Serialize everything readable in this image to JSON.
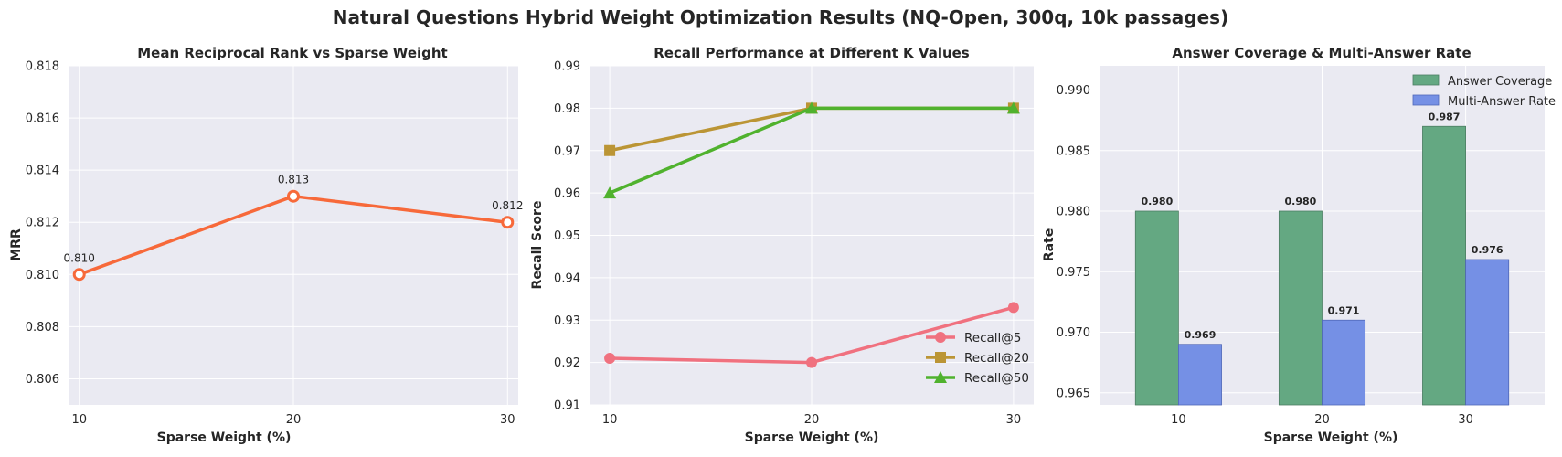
{
  "figure_title": "Natural Questions Hybrid Weight Optimization Results (NQ-Open, 300q, 10k passages)",
  "colors": {
    "plot_bg": "#EAEAF2",
    "grid": "#FFFFFF",
    "mrr_line": "#F7693A",
    "recall5": "#F0717F",
    "recall20": "#BB9535",
    "recall50": "#50B22E",
    "answer_coverage": "#64A882",
    "multi_answer": "#7590E5"
  },
  "chart_data": [
    {
      "type": "line",
      "title": "Mean Reciprocal Rank vs Sparse Weight",
      "xlabel": "Sparse Weight (%)",
      "ylabel": "MRR",
      "x": [
        10,
        20,
        30
      ],
      "xticks": [
        "10",
        "20",
        "30"
      ],
      "ylim": [
        0.805,
        0.818
      ],
      "yticks": [
        "0.806",
        "0.808",
        "0.810",
        "0.812",
        "0.814",
        "0.816",
        "0.818"
      ],
      "grid": true,
      "series": [
        {
          "values": [
            0.81,
            0.813,
            0.812
          ],
          "marker": "hollow-circle",
          "data_labels": [
            "0.810",
            "0.813",
            "0.812"
          ]
        }
      ]
    },
    {
      "type": "line",
      "title": "Recall Performance at Different K Values",
      "xlabel": "Sparse Weight (%)",
      "ylabel": "Recall Score",
      "x": [
        10,
        20,
        30
      ],
      "xticks": [
        "10",
        "20",
        "30"
      ],
      "ylim": [
        0.91,
        0.99
      ],
      "yticks": [
        "0.91",
        "0.92",
        "0.93",
        "0.94",
        "0.95",
        "0.96",
        "0.97",
        "0.98",
        "0.99"
      ],
      "grid": true,
      "legend_position": "lower-right",
      "series": [
        {
          "name": "Recall@5",
          "values": [
            0.921,
            0.92,
            0.933
          ],
          "marker": "circle"
        },
        {
          "name": "Recall@20",
          "values": [
            0.97,
            0.98,
            0.98
          ],
          "marker": "square"
        },
        {
          "name": "Recall@50",
          "values": [
            0.96,
            0.98,
            0.98
          ],
          "marker": "triangle"
        }
      ]
    },
    {
      "type": "bar",
      "title": "Answer Coverage & Multi-Answer Rate",
      "xlabel": "Sparse Weight (%)",
      "ylabel": "Rate",
      "categories": [
        "10",
        "20",
        "30"
      ],
      "ylim": [
        0.964,
        0.992
      ],
      "yticks": [
        "0.965",
        "0.970",
        "0.975",
        "0.980",
        "0.985",
        "0.990"
      ],
      "grid": true,
      "legend_position": "upper-right",
      "series": [
        {
          "name": "Answer Coverage",
          "values": [
            0.98,
            0.98,
            0.987
          ],
          "data_labels": [
            "0.980",
            "0.980",
            "0.987"
          ]
        },
        {
          "name": "Multi-Answer Rate",
          "values": [
            0.969,
            0.971,
            0.976
          ],
          "data_labels": [
            "0.969",
            "0.971",
            "0.976"
          ]
        }
      ]
    }
  ]
}
